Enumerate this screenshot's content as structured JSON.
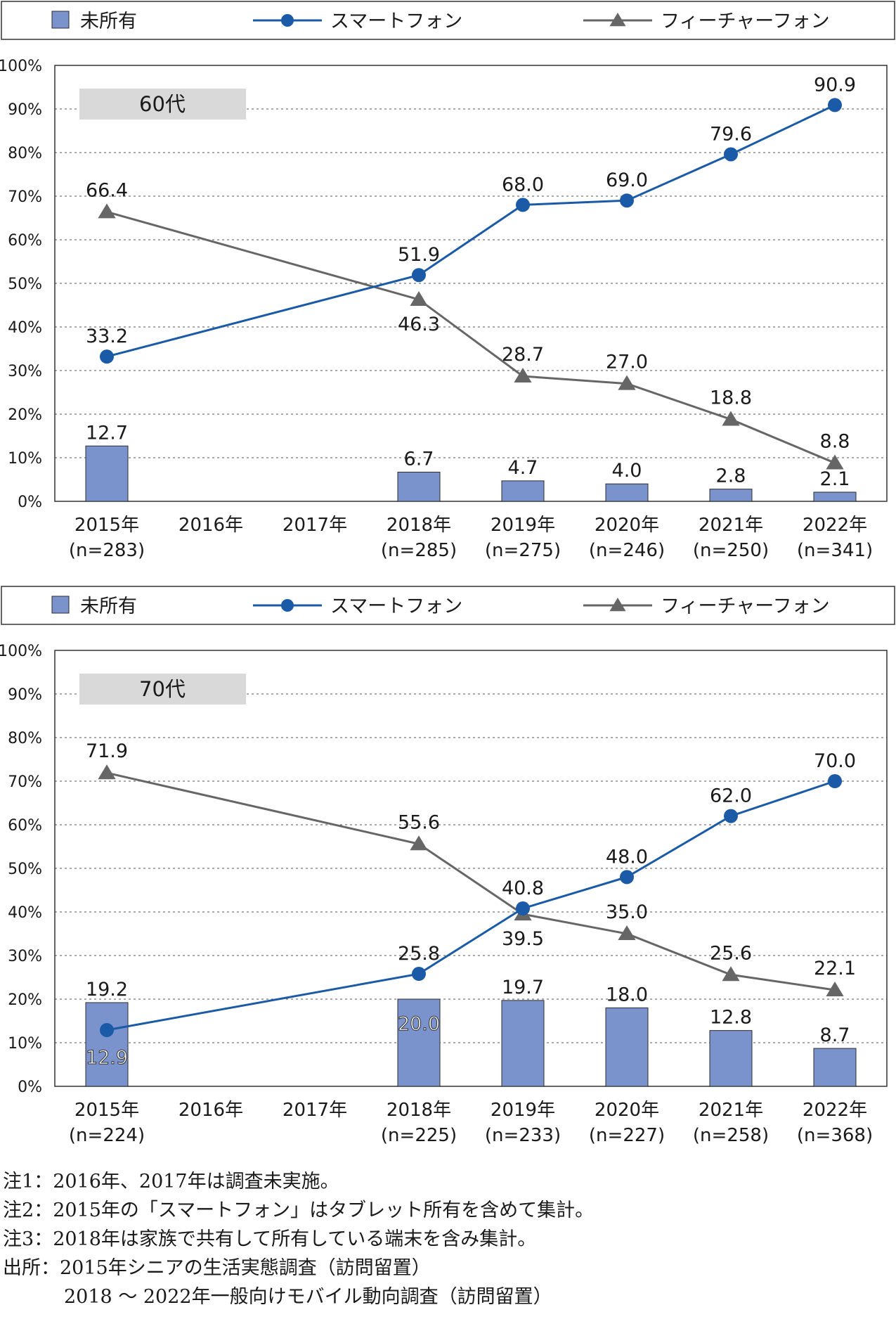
{
  "colors": {
    "bar": "#7b93cc",
    "bar_stroke": "#2b2b2b",
    "smartphone": "#1a5aa6",
    "featurephone": "#666666",
    "group_box": "#d9d9d9"
  },
  "legend": {
    "unowned": "未所有",
    "smartphone": "スマートフォン",
    "featurephone": "フィーチャーフォン"
  },
  "chart_data": [
    {
      "type": "bar+line",
      "group_label": "60代",
      "ylim": [
        0,
        100
      ],
      "y_ticks": [
        "0%",
        "10%",
        "20%",
        "30%",
        "40%",
        "50%",
        "60%",
        "70%",
        "80%",
        "90%",
        "100%"
      ],
      "categories": [
        [
          "2015年",
          "(n=283)"
        ],
        [
          "2016年",
          ""
        ],
        [
          "2017年",
          ""
        ],
        [
          "2018年",
          "(n=285)"
        ],
        [
          "2019年",
          "(n=275)"
        ],
        [
          "2020年",
          "(n=246)"
        ],
        [
          "2021年",
          "(n=250)"
        ],
        [
          "2022年",
          "(n=341)"
        ]
      ],
      "series": [
        {
          "name": "未所有",
          "kind": "bar",
          "values": [
            12.7,
            null,
            null,
            6.7,
            4.7,
            4.0,
            2.8,
            2.1
          ],
          "labels": [
            "12.7",
            "",
            "",
            "6.7",
            "4.7",
            "4.0",
            "2.8",
            "2.1"
          ]
        },
        {
          "name": "スマートフォン",
          "kind": "line-circle",
          "values": [
            33.2,
            null,
            null,
            51.9,
            68.0,
            69.0,
            79.6,
            90.9
          ],
          "labels": [
            "33.2",
            "",
            "",
            "51.9",
            "68.0",
            "69.0",
            "79.6",
            "90.9"
          ]
        },
        {
          "name": "フィーチャーフォン",
          "kind": "line-triangle",
          "values": [
            66.4,
            null,
            null,
            46.3,
            28.7,
            27.0,
            18.8,
            8.8
          ],
          "labels": [
            "66.4",
            "",
            "",
            "46.3",
            "28.7",
            "27.0",
            "18.8",
            "8.8"
          ]
        }
      ]
    },
    {
      "type": "bar+line",
      "group_label": "70代",
      "ylim": [
        0,
        100
      ],
      "y_ticks": [
        "0%",
        "10%",
        "20%",
        "30%",
        "40%",
        "50%",
        "60%",
        "70%",
        "80%",
        "90%",
        "100%"
      ],
      "categories": [
        [
          "2015年",
          "(n=224)"
        ],
        [
          "2016年",
          ""
        ],
        [
          "2017年",
          ""
        ],
        [
          "2018年",
          "(n=225)"
        ],
        [
          "2019年",
          "(n=233)"
        ],
        [
          "2020年",
          "(n=227)"
        ],
        [
          "2021年",
          "(n=258)"
        ],
        [
          "2022年",
          "(n=368)"
        ]
      ],
      "series": [
        {
          "name": "未所有",
          "kind": "bar",
          "values": [
            19.2,
            null,
            null,
            20.0,
            19.7,
            18.0,
            12.8,
            8.7
          ],
          "labels": [
            "19.2",
            "",
            "",
            "20.0",
            "19.7",
            "18.0",
            "12.8",
            "8.7"
          ]
        },
        {
          "name": "スマートフォン",
          "kind": "line-circle",
          "values": [
            12.9,
            null,
            null,
            25.8,
            40.8,
            48.0,
            62.0,
            70.0
          ],
          "labels": [
            "12.9",
            "",
            "",
            "25.8",
            "40.8",
            "48.0",
            "62.0",
            "70.0"
          ]
        },
        {
          "name": "フィーチャーフォン",
          "kind": "line-triangle",
          "values": [
            71.9,
            null,
            null,
            55.6,
            39.5,
            35.0,
            25.6,
            22.1
          ],
          "labels": [
            "71.9",
            "",
            "",
            "55.6",
            "39.5",
            "35.0",
            "25.6",
            "22.1"
          ]
        }
      ]
    }
  ],
  "notes": [
    {
      "label": "注1：",
      "text": "2016年、2017年は調査未実施。"
    },
    {
      "label": "注2：",
      "text": "2015年の「スマートフォン」はタブレット所有を含めて集計。"
    },
    {
      "label": "注3：",
      "text": "2018年は家族で共有して所有している端末を含み集計。"
    },
    {
      "label": "出所：",
      "text": "2015年シニアの生活実態調査（訪問留置）"
    },
    {
      "label": "",
      "text": "2018 ～ 2022年一般向けモバイル動向調査（訪問留置）"
    }
  ]
}
